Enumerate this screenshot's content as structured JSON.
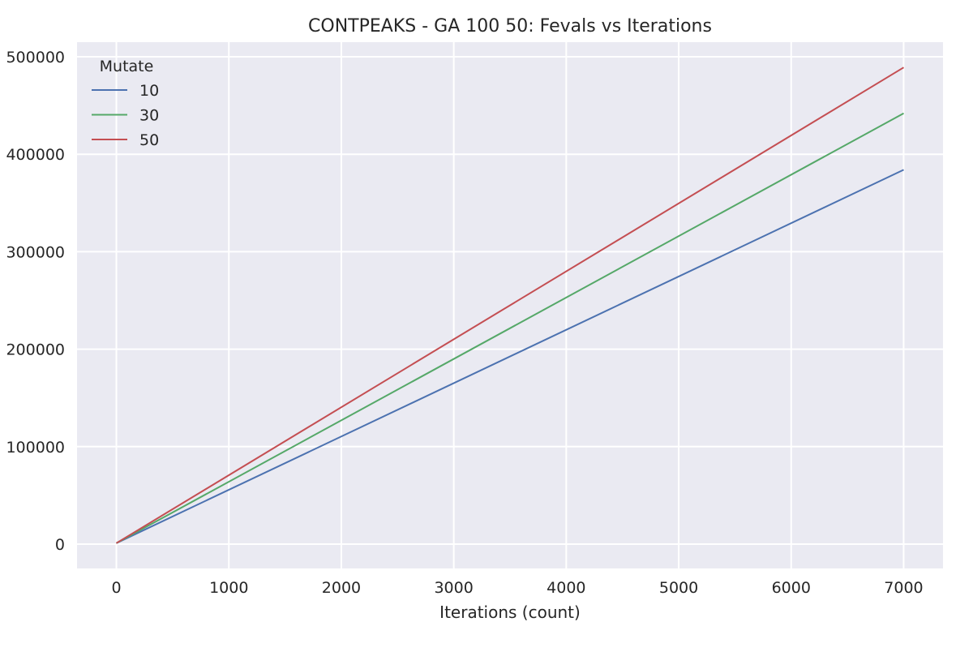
{
  "chart_data": {
    "type": "line",
    "title": "CONTPEAKS - GA 100 50: Fevals vs Iterations",
    "xlabel": "Iterations (count)",
    "ylabel": "",
    "xlim": [
      -350,
      7350
    ],
    "ylim": [
      -25000,
      515000
    ],
    "xticks": [
      0,
      1000,
      2000,
      3000,
      4000,
      5000,
      6000,
      7000
    ],
    "yticks": [
      0,
      100000,
      200000,
      300000,
      400000,
      500000
    ],
    "grid": true,
    "legend": {
      "title": "Mutate",
      "placement": "top-left"
    },
    "series": [
      {
        "name": "10",
        "color": "#4c72b0",
        "x": [
          0,
          7000
        ],
        "y": [
          1000,
          384000
        ]
      },
      {
        "name": "30",
        "color": "#55a868",
        "x": [
          0,
          7000
        ],
        "y": [
          1000,
          442000
        ]
      },
      {
        "name": "50",
        "color": "#c44e52",
        "x": [
          0,
          7000
        ],
        "y": [
          1000,
          489000
        ]
      }
    ],
    "colors": {
      "plot_background": "#eaeaf2",
      "grid": "#ffffff",
      "text": "#262626"
    }
  }
}
